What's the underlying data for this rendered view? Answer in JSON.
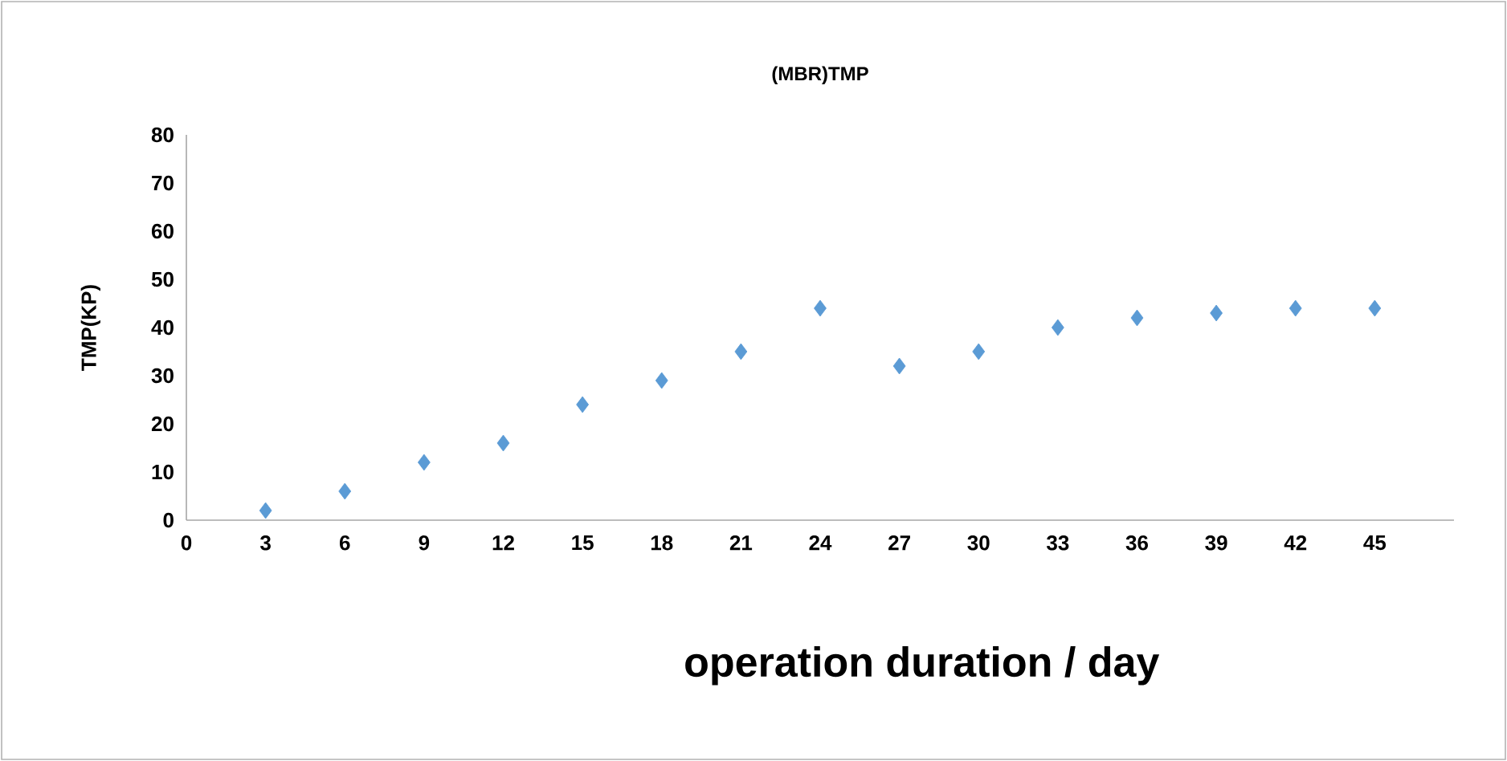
{
  "chart_data": {
    "type": "scatter",
    "title": "(MBR)TMP",
    "xlabel": "operation duration / day",
    "ylabel": "TMP(KP)",
    "x": [
      3,
      6,
      9,
      12,
      15,
      18,
      21,
      24,
      27,
      30,
      33,
      36,
      39,
      42,
      45
    ],
    "series": [
      {
        "color": "#5b9bd5",
        "values": [
          2,
          6,
          12,
          16,
          24,
          29,
          35,
          44,
          32,
          35,
          40,
          42,
          43,
          44,
          44
        ]
      }
    ],
    "xlim": [
      0,
      48
    ],
    "xticks": [
      0,
      3,
      6,
      9,
      12,
      15,
      18,
      21,
      24,
      27,
      30,
      33,
      36,
      39,
      42,
      45
    ],
    "ylim": [
      0,
      80
    ],
    "yticks": [
      0,
      10,
      20,
      30,
      40,
      50,
      60,
      70,
      80
    ],
    "marker": "diamond",
    "grid": false,
    "legend": false
  }
}
